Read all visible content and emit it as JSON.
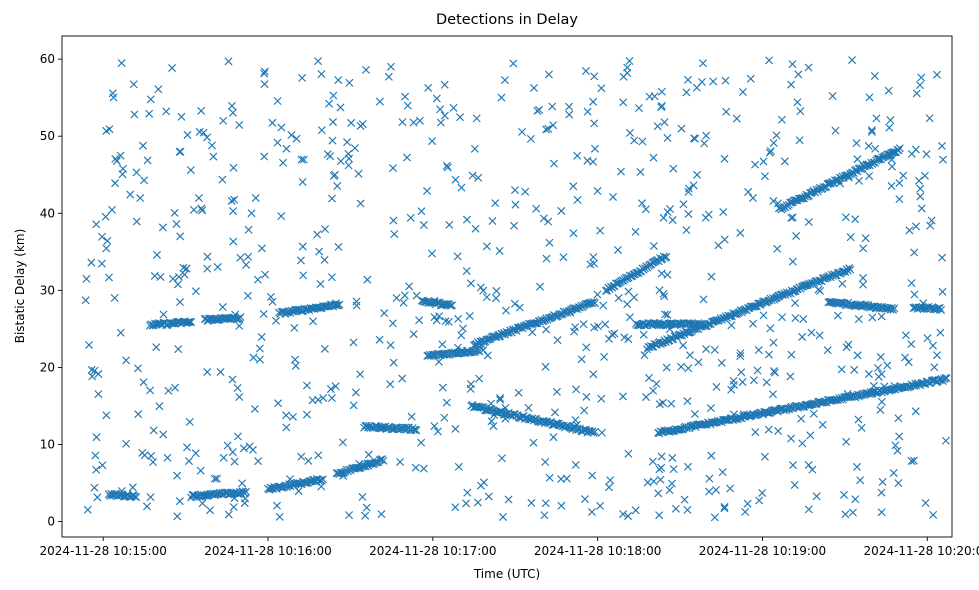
{
  "chart_data": {
    "type": "scatter",
    "title": "Detections in Delay",
    "xlabel": "Time (UTC)",
    "ylabel": "Bistatic Delay (km)",
    "marker": "x",
    "color": "#1f77b4",
    "grid": false,
    "x_start": "2024-11-28 10:14:45",
    "x_end": "2024-11-28 10:20:09",
    "ylim": [
      -2,
      63
    ],
    "xticks": [
      {
        "t": "2024-11-28 10:15:00",
        "label": "2024-11-28 10:15:00"
      },
      {
        "t": "2024-11-28 10:16:00",
        "label": "2024-11-28 10:16:00"
      },
      {
        "t": "2024-11-28 10:17:00",
        "label": "2024-11-28 10:17:00"
      },
      {
        "t": "2024-11-28 10:18:00",
        "label": "2024-11-28 10:18:00"
      },
      {
        "t": "2024-11-28 10:19:00",
        "label": "2024-11-28 10:19:00"
      },
      {
        "t": "2024-11-28 10:20:00",
        "label": "2024-11-28 10:20:00"
      }
    ],
    "yticks": [
      0,
      10,
      20,
      30,
      40,
      50,
      60
    ],
    "tracks": [
      {
        "t_start": "2024-11-28 10:15:02",
        "t_end": "2024-11-28 10:15:12",
        "y_start": 3.5,
        "y_end": 3.3
      },
      {
        "t_start": "2024-11-28 10:15:32",
        "t_end": "2024-11-28 10:15:52",
        "y_start": 3.3,
        "y_end": 3.8
      },
      {
        "t_start": "2024-11-28 10:16:00",
        "t_end": "2024-11-28 10:16:20",
        "y_start": 4.2,
        "y_end": 5.5
      },
      {
        "t_start": "2024-11-28 10:16:25",
        "t_end": "2024-11-28 10:16:42",
        "y_start": 6.2,
        "y_end": 8.0
      },
      {
        "t_start": "2024-11-28 10:15:17",
        "t_end": "2024-11-28 10:15:32",
        "y_start": 25.5,
        "y_end": 25.9
      },
      {
        "t_start": "2024-11-28 10:15:37",
        "t_end": "2024-11-28 10:15:50",
        "y_start": 26.2,
        "y_end": 26.4
      },
      {
        "t_start": "2024-11-28 10:16:04",
        "t_end": "2024-11-28 10:16:26",
        "y_start": 27.0,
        "y_end": 28.2
      },
      {
        "t_start": "2024-11-28 10:16:35",
        "t_end": "2024-11-28 10:16:54",
        "y_start": 12.3,
        "y_end": 12.0
      },
      {
        "t_start": "2024-11-28 10:16:56",
        "t_end": "2024-11-28 10:17:07",
        "y_start": 28.6,
        "y_end": 28.0
      },
      {
        "t_start": "2024-11-28 10:16:58",
        "t_end": "2024-11-28 10:17:17",
        "y_start": 21.5,
        "y_end": 22.2
      },
      {
        "t_start": "2024-11-28 10:17:15",
        "t_end": "2024-11-28 10:17:59",
        "y_start": 23.0,
        "y_end": 28.5
      },
      {
        "t_start": "2024-11-28 10:17:14",
        "t_end": "2024-11-28 10:17:59",
        "y_start": 15.0,
        "y_end": 11.5
      },
      {
        "t_start": "2024-11-28 10:18:03",
        "t_end": "2024-11-28 10:18:25",
        "y_start": 30.0,
        "y_end": 34.5
      },
      {
        "t_start": "2024-11-28 10:18:14",
        "t_end": "2024-11-28 10:18:38",
        "y_start": 25.6,
        "y_end": 25.6
      },
      {
        "t_start": "2024-11-28 10:18:18",
        "t_end": "2024-11-28 10:19:32",
        "y_start": 22.5,
        "y_end": 32.8
      },
      {
        "t_start": "2024-11-28 10:18:22",
        "t_end": "2024-11-28 10:20:07",
        "y_start": 11.5,
        "y_end": 18.5
      },
      {
        "t_start": "2024-11-28 10:19:06",
        "t_end": "2024-11-28 10:19:50",
        "y_start": 40.5,
        "y_end": 48.3
      },
      {
        "t_start": "2024-11-28 10:19:24",
        "t_end": "2024-11-28 10:19:48",
        "y_start": 28.5,
        "y_end": 27.6
      },
      {
        "t_start": "2024-11-28 10:19:55",
        "t_end": "2024-11-28 10:20:05",
        "y_start": 27.8,
        "y_end": 27.6
      }
    ]
  }
}
